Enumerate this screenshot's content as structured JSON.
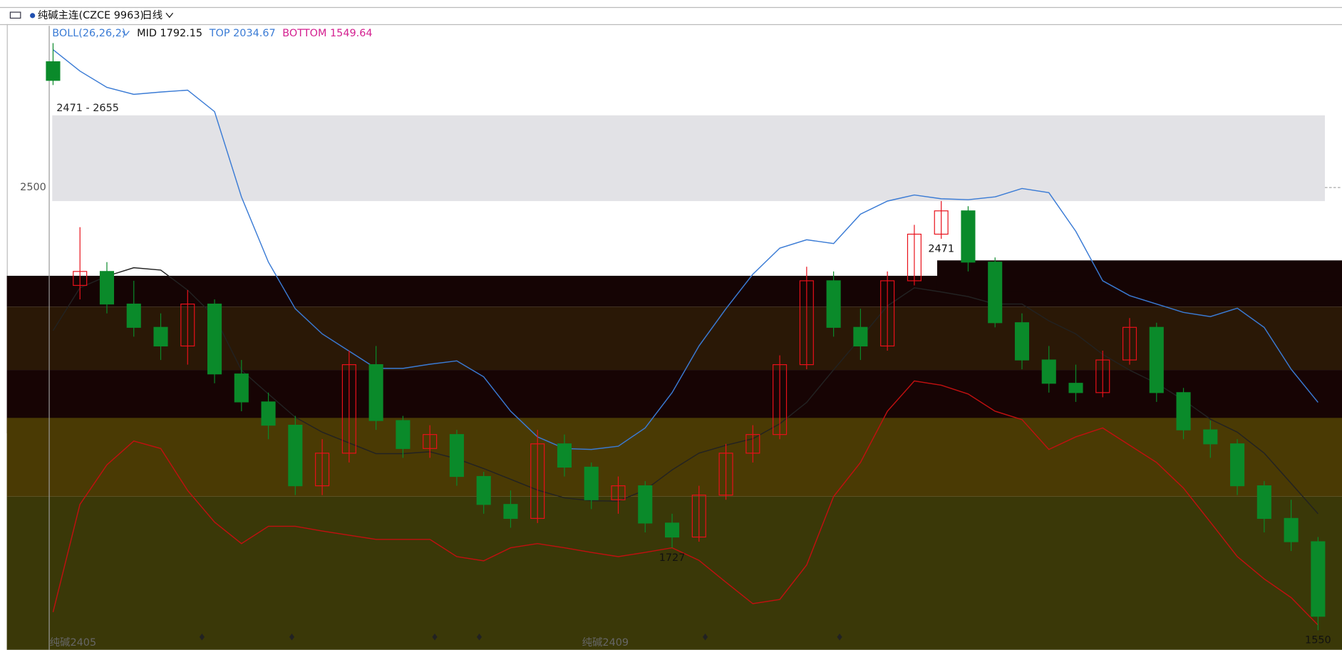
{
  "header": {
    "symbol": "纯碱主连(CZCE 9963)",
    "period": "日线"
  },
  "chart_data": {
    "type": "candlestick",
    "indicator": "BOLL(26,26,2)",
    "contract_labels": [
      "纯碱2405",
      "纯碱2409"
    ],
    "ylim": [
      1508,
      2847
    ],
    "yticks": [
      2500
    ],
    "zone": {
      "label": "2471 - 2655",
      "low": 2471,
      "high": 2655
    },
    "annotations": [
      {
        "text": "2471",
        "index": 33
      },
      {
        "text": "1727",
        "index": 23
      },
      {
        "text": "1550",
        "index": 47
      }
    ],
    "up_color": "#e8101a",
    "down_color": "#0a8a2a",
    "open": [
      2770,
      2290,
      2320,
      2250,
      2200,
      2160,
      2250,
      2100,
      2040,
      1990,
      1860,
      1930,
      2120,
      2000,
      1940,
      1970,
      1880,
      1820,
      1790,
      1950,
      1900,
      1830,
      1860,
      1780,
      1750,
      1840,
      1930,
      1970,
      2120,
      2300,
      2200,
      2160,
      2300,
      2400,
      2450,
      2340,
      2210,
      2130,
      2080,
      2060,
      2130,
      2200,
      2060,
      1980,
      1950,
      1860,
      1790,
      1740
    ],
    "high": [
      2810,
      2415,
      2340,
      2300,
      2230,
      2280,
      2260,
      2130,
      2060,
      2010,
      1960,
      2150,
      2160,
      2010,
      1990,
      1980,
      1890,
      1850,
      1980,
      1970,
      1910,
      1880,
      1870,
      1800,
      1860,
      1950,
      1990,
      2140,
      2330,
      2320,
      2240,
      2320,
      2420,
      2471,
      2460,
      2350,
      2230,
      2160,
      2120,
      2150,
      2220,
      2210,
      2070,
      2000,
      1960,
      1870,
      1830,
      1750
    ],
    "low": [
      2720,
      2260,
      2230,
      2180,
      2130,
      2120,
      2080,
      2020,
      1960,
      1840,
      1840,
      1910,
      1980,
      1920,
      1920,
      1860,
      1800,
      1770,
      1780,
      1880,
      1810,
      1800,
      1760,
      1727,
      1740,
      1830,
      1910,
      1960,
      2110,
      2180,
      2130,
      2150,
      2290,
      2390,
      2320,
      2200,
      2110,
      2060,
      2040,
      2050,
      2120,
      2040,
      1960,
      1920,
      1840,
      1760,
      1720,
      1550
    ],
    "close": [
      2730,
      2320,
      2250,
      2200,
      2160,
      2250,
      2100,
      2040,
      1990,
      1860,
      1930,
      2120,
      2000,
      1940,
      1970,
      1880,
      1820,
      1790,
      1950,
      1900,
      1830,
      1860,
      1780,
      1750,
      1840,
      1930,
      1970,
      2120,
      2300,
      2200,
      2160,
      2300,
      2400,
      2450,
      2340,
      2210,
      2130,
      2080,
      2060,
      2130,
      2200,
      2060,
      1980,
      1950,
      1860,
      1790,
      1740,
      1580
    ],
    "series": [
      {
        "name": "MID",
        "color": "#222222",
        "last": 1792.15,
        "values": [
          2193,
          2285,
          2310,
          2328,
          2323,
          2280,
          2223,
          2108,
          2057,
          2007,
          1975,
          1952,
          1929,
          1929,
          1933,
          1918,
          1897,
          1874,
          1851,
          1834,
          1828,
          1827,
          1851,
          1894,
          1930,
          1947,
          1961,
          1993,
          2039,
          2109,
          2177,
          2246,
          2285,
          2276,
          2266,
          2250,
          2250,
          2214,
          2186,
          2142,
          2108,
          2080,
          2044,
          2003,
          1975,
          1930,
          1865,
          1800
        ]
      },
      {
        "name": "TOP",
        "color": "#3a7bd5",
        "last": 2034.67,
        "values": [
          2796,
          2750,
          2715,
          2700,
          2705,
          2709,
          2663,
          2480,
          2340,
          2240,
          2186,
          2149,
          2112,
          2112,
          2121,
          2128,
          2094,
          2020,
          1965,
          1940,
          1938,
          1945,
          1984,
          2060,
          2160,
          2240,
          2314,
          2370,
          2388,
          2380,
          2443,
          2471,
          2484,
          2476,
          2474,
          2480,
          2498,
          2489,
          2406,
          2300,
          2268,
          2250,
          2232,
          2223,
          2241,
          2200,
          2110,
          2039
        ]
      },
      {
        "name": "BOTTOM",
        "color": "#d42090",
        "line_color": "#c01010",
        "last": 1549.64,
        "values": [
          1589,
          1820,
          1905,
          1956,
          1940,
          1850,
          1782,
          1736,
          1773,
          1773,
          1763,
          1754,
          1745,
          1745,
          1745,
          1708,
          1699,
          1727,
          1736,
          1727,
          1717,
          1708,
          1717,
          1727,
          1700,
          1653,
          1607,
          1616,
          1690,
          1837,
          1910,
          2020,
          2085,
          2076,
          2057,
          2020,
          2002,
          1938,
          1965,
          1984,
          1947,
          1910,
          1855,
          1782,
          1708,
          1660,
          1620,
          1561
        ]
      }
    ]
  }
}
